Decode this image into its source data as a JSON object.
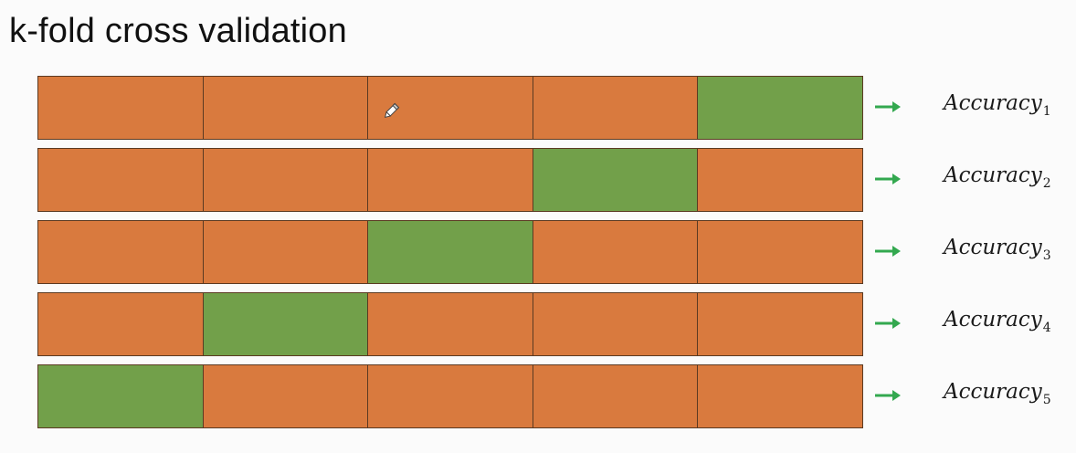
{
  "title": "k-fold cross validation",
  "colors": {
    "training": "#d97a3e",
    "validation": "#72a04a",
    "arrow": "#33a84f",
    "border": "#5b3a22"
  },
  "folds": [
    {
      "validation_index": 4,
      "label": "Accuracy",
      "subscript": "1"
    },
    {
      "validation_index": 3,
      "label": "Accuracy",
      "subscript": "2"
    },
    {
      "validation_index": 2,
      "label": "Accuracy",
      "subscript": "3"
    },
    {
      "validation_index": 1,
      "label": "Accuracy",
      "subscript": "4"
    },
    {
      "validation_index": 0,
      "label": "Accuracy",
      "subscript": "5"
    }
  ],
  "segments_per_fold": 5,
  "icons": {
    "arrow": "arrow-right-icon",
    "cursor": "pencil-icon"
  }
}
